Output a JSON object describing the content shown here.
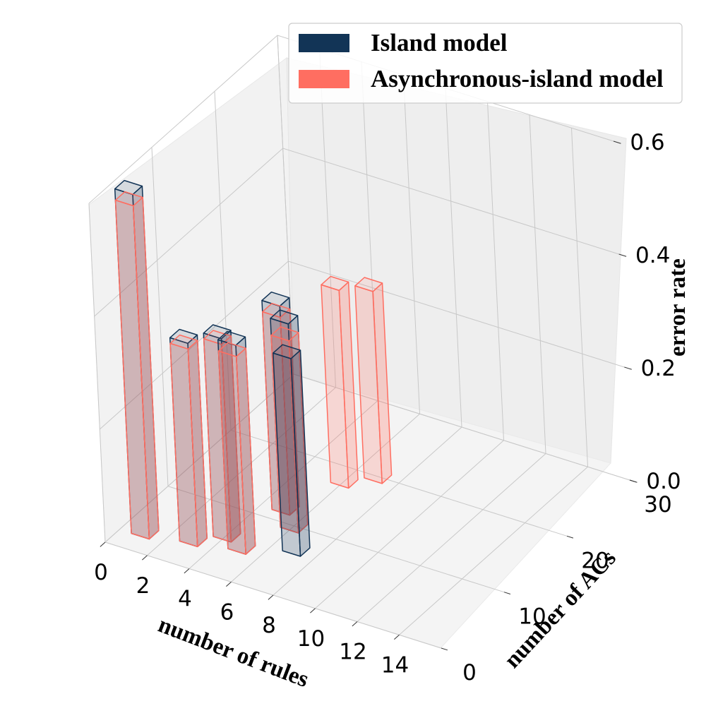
{
  "chart_data": {
    "type": "bar3d",
    "xlabel": "number of rules",
    "ylabel": "number of ACs",
    "zlabel": "error rate",
    "x_ticks": [
      "0",
      "2",
      "4",
      "6",
      "8",
      "10",
      "12",
      "14"
    ],
    "y_ticks": [
      "0",
      "10",
      "20",
      "30"
    ],
    "z_ticks": [
      "0.0",
      "0.2",
      "0.4",
      "0.6"
    ],
    "xlim": [
      0,
      16
    ],
    "ylim": [
      0,
      30
    ],
    "zlim": [
      0,
      0.6
    ],
    "legend_position": "top-right",
    "colors": {
      "island": "#123456",
      "async": "#ff6e61"
    },
    "series": [
      {
        "name": "Island model",
        "bars": [
          {
            "x": 1,
            "y": 3,
            "z": 0.61
          },
          {
            "x": 3,
            "y": 4,
            "z": 0.36
          },
          {
            "x": 4,
            "y": 6,
            "z": 0.36
          },
          {
            "x": 5,
            "y": 5,
            "z": 0.37
          },
          {
            "x": 6,
            "y": 10,
            "z": 0.37
          },
          {
            "x": 5,
            "y": 12,
            "z": 0.37
          },
          {
            "x": 7,
            "y": 7,
            "z": 0.35
          }
        ]
      },
      {
        "name": "Asynchronous-island model",
        "bars": [
          {
            "x": 1,
            "y": 3,
            "z": 0.59
          },
          {
            "x": 3,
            "y": 4,
            "z": 0.35
          },
          {
            "x": 4,
            "y": 6,
            "z": 0.35
          },
          {
            "x": 5,
            "y": 5,
            "z": 0.35
          },
          {
            "x": 6,
            "y": 10,
            "z": 0.34
          },
          {
            "x": 5,
            "y": 12,
            "z": 0.35
          },
          {
            "x": 6,
            "y": 18,
            "z": 0.35
          },
          {
            "x": 7,
            "y": 20,
            "z": 0.34
          }
        ]
      }
    ]
  }
}
